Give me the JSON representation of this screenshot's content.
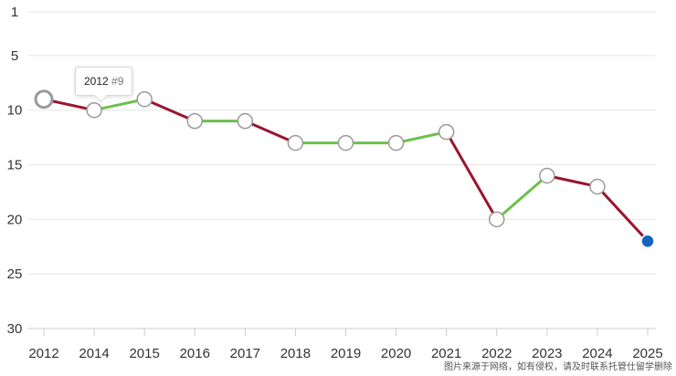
{
  "chart_data": {
    "type": "line",
    "x": [
      "2012",
      "2014",
      "2015",
      "2016",
      "2017",
      "2018",
      "2019",
      "2020",
      "2021",
      "2022",
      "2023",
      "2024",
      "2025"
    ],
    "series": [
      {
        "values": [
          9,
          10,
          9,
          11,
          11,
          13,
          13,
          13,
          12,
          20,
          16,
          17,
          22
        ]
      }
    ],
    "y_ticks": [
      "1",
      "5",
      "10",
      "15",
      "20",
      "25",
      "30"
    ],
    "ylim": [
      1,
      30
    ],
    "y_inverted": true,
    "grid": true,
    "colors": {
      "rank_up": "#6cc04a",
      "rank_down": "#9b1530",
      "highlight": "#1565c0",
      "marker_stroke": "#9a9a9a"
    },
    "highlight_index": 12
  },
  "tooltip": {
    "year": "2012",
    "rank": "#9"
  },
  "watermark": "图片来源于网络，如有侵权，请及时联系托管仕留学删除"
}
